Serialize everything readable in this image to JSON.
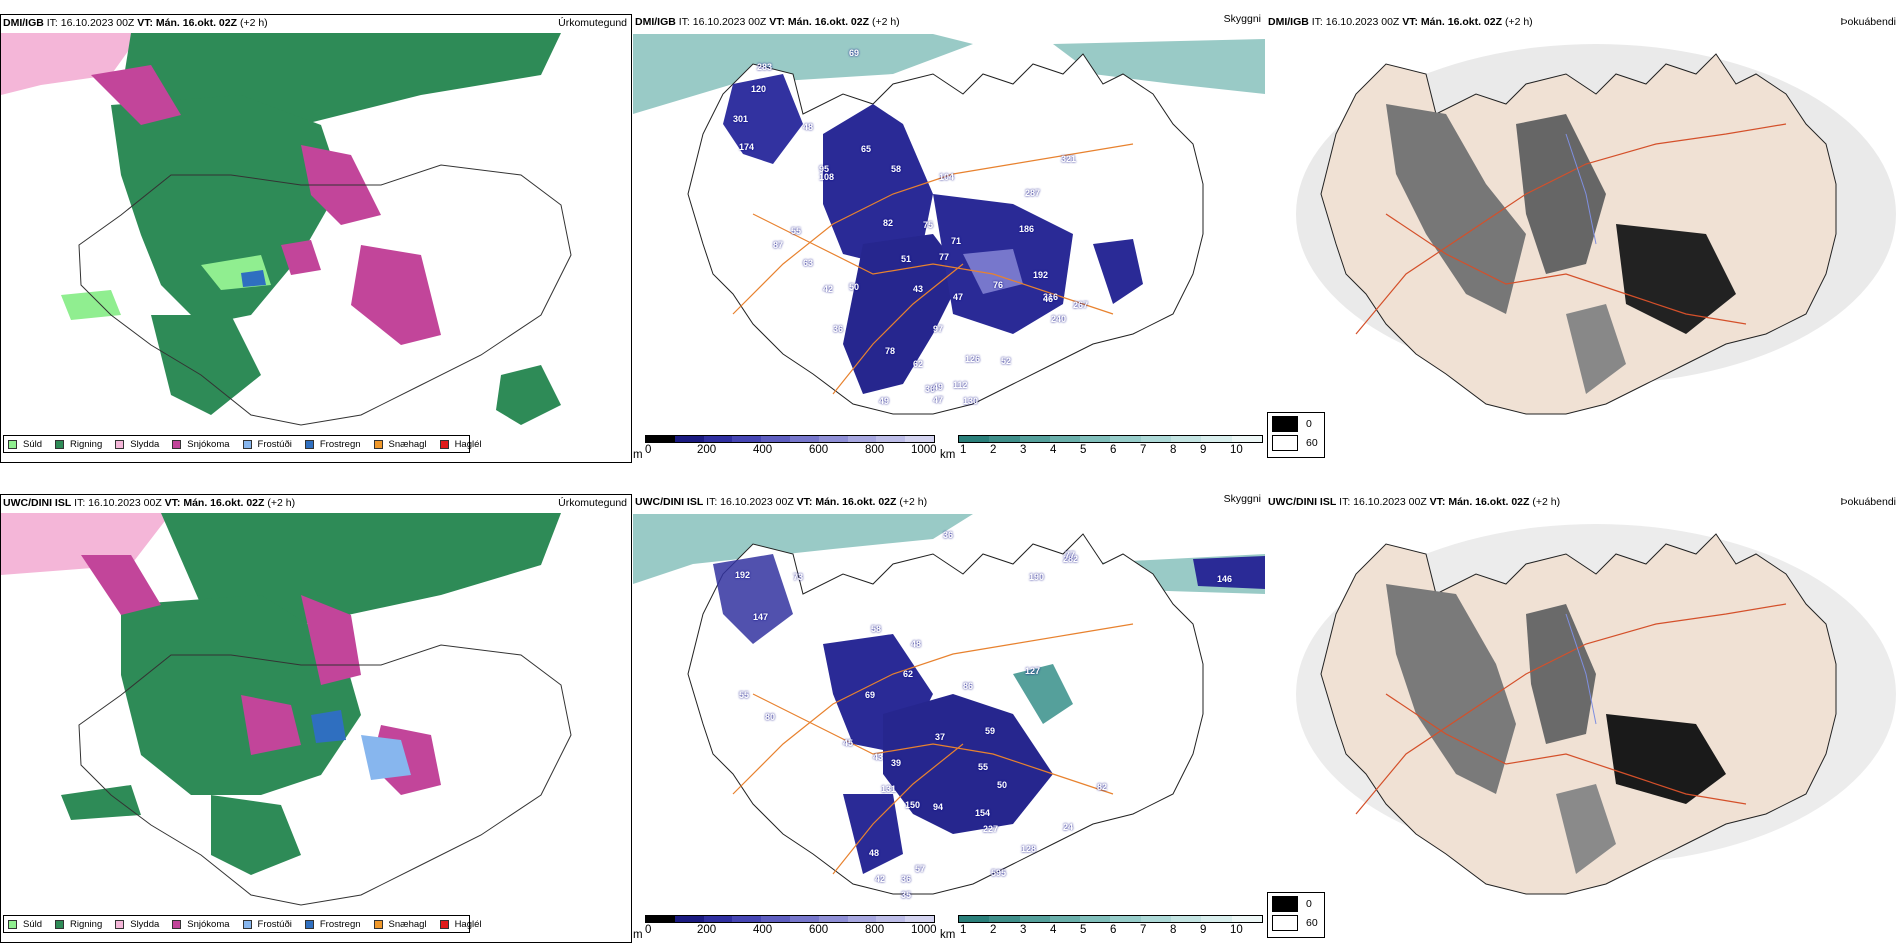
{
  "rows": [
    {
      "model": "DMI/IGB",
      "it": " IT: 16.10.2023 00Z ",
      "vt": "VT: Mán. 16.okt. 02Z",
      "lead": " (+2 h)",
      "cloud_labels": [
        "283",
        "69",
        "120",
        "48",
        "301",
        "174",
        "65",
        "95",
        "58",
        "104",
        "287",
        "321",
        "108",
        "82",
        "75",
        "71",
        "186",
        "55",
        "87",
        "63",
        "51",
        "77",
        "192",
        "42",
        "50",
        "43",
        "76",
        "316",
        "267",
        "240",
        "46",
        "47",
        "97",
        "62",
        "78",
        "36",
        "126",
        "52",
        "49",
        "112",
        "130",
        "36",
        "49",
        "47"
      ]
    },
    {
      "model": "UWC/DINI ISL",
      "it": " IT: 16.10.2023 00Z ",
      "vt": "VT: Mán. 16.okt. 02Z",
      "lead": " (+2 h)",
      "cloud_labels": [
        "36",
        "282",
        "190",
        "77",
        "146",
        "192",
        "73",
        "147",
        "58",
        "48",
        "62",
        "69",
        "55",
        "86",
        "127",
        "80",
        "37",
        "59",
        "45",
        "43",
        "39",
        "55",
        "50",
        "131",
        "150",
        "94",
        "154",
        "227",
        "48",
        "57",
        "128",
        "42",
        "595",
        "36",
        "35",
        "24",
        "82"
      ]
    }
  ],
  "panel_titles": {
    "precip": "Úrkomutegund",
    "cloud": "Skyggni",
    "fog": "Þokuábendi"
  },
  "precip_legend": [
    {
      "label": "Súld",
      "color": "#90ee90"
    },
    {
      "label": "Rigning",
      "color": "#2e8b57"
    },
    {
      "label": "Slydda",
      "color": "#f4b6d8"
    },
    {
      "label": "Snjókoma",
      "color": "#c2459a"
    },
    {
      "label": "Frostúði",
      "color": "#87b6ee"
    },
    {
      "label": "Frostregn",
      "color": "#2f6fc0"
    },
    {
      "label": "Snæhagl",
      "color": "#f0982a"
    },
    {
      "label": "Haglél",
      "color": "#e01b1b"
    }
  ],
  "cloud_scale_m": {
    "unit": "m",
    "ticks": [
      "0",
      "200",
      "400",
      "600",
      "800",
      "1000"
    ],
    "colors": [
      "#000000",
      "#1a1a80",
      "#2f2fa0",
      "#4646b4",
      "#5e5ec0",
      "#7777cc",
      "#8f8fd6",
      "#a7a7e0",
      "#bdbde8",
      "#d3d3f0"
    ]
  },
  "cloud_scale_km": {
    "unit": "km",
    "ticks": [
      "1",
      "2",
      "3",
      "4",
      "5",
      "6",
      "7",
      "8",
      "9",
      "10"
    ],
    "colors": [
      "#2a7f7a",
      "#3f8f8a",
      "#55a09b",
      "#6bb0ab",
      "#81bfbb",
      "#97cdca",
      "#add9d7",
      "#c3e4e2",
      "#d8eeed",
      "#edf7f6"
    ]
  },
  "fog_legend": [
    {
      "label": "0",
      "color": "#000000"
    },
    {
      "label": "60",
      "color": "#ffffff"
    }
  ]
}
